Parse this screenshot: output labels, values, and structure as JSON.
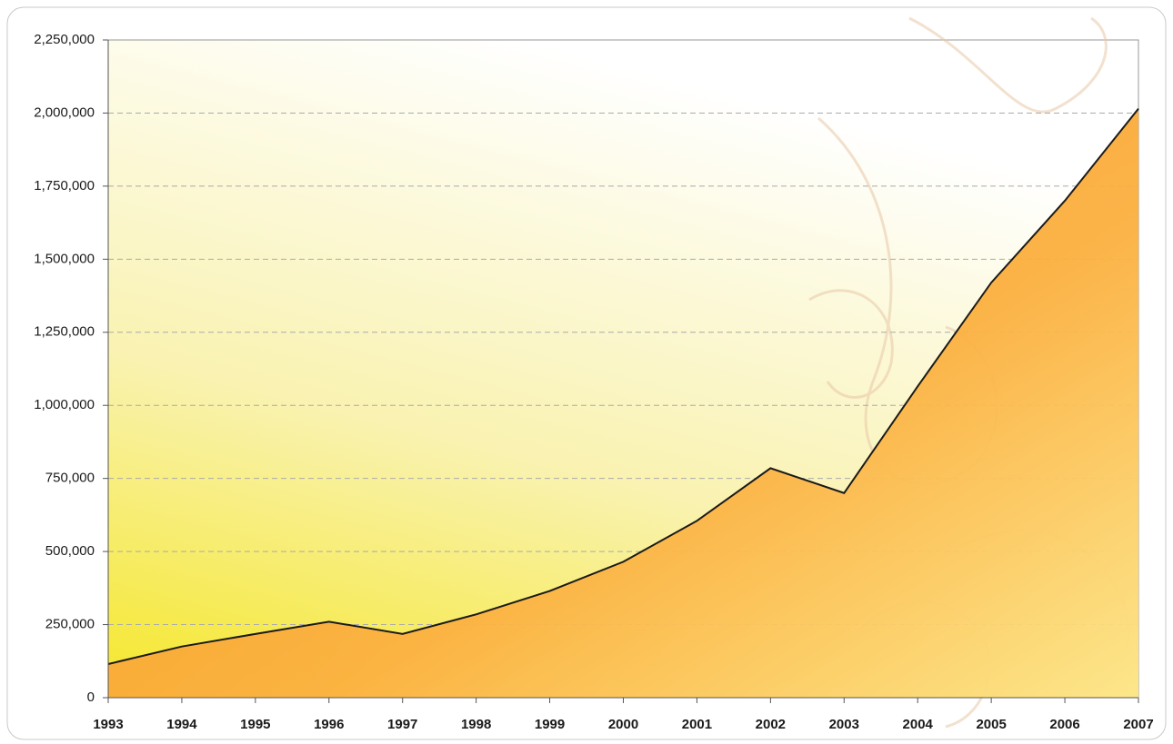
{
  "chart_data": {
    "type": "area",
    "categories": [
      "1993",
      "1994",
      "1995",
      "1996",
      "1997",
      "1998",
      "1999",
      "2000",
      "2001",
      "2002",
      "2003",
      "2004",
      "2005",
      "2006",
      "2007"
    ],
    "series": [
      {
        "color": "#f7941d",
        "values": [
          115000,
          175000,
          218000,
          260000,
          218000,
          285000,
          365000,
          465000,
          605000,
          785000,
          700000,
          1065000,
          1420000,
          1700000,
          2015000
        ]
      }
    ],
    "ylim": [
      0,
      2250000
    ],
    "yticks": [
      0,
      {
        "value": 250000,
        "label": "250,000"
      },
      {
        "value": 500000,
        "label": "500,000"
      },
      {
        "value": 750000,
        "label": "750,000"
      },
      {
        "value": 1000000,
        "label": "1,000,000"
      },
      {
        "value": 1250000,
        "label": "1,250,000"
      },
      {
        "value": 1500000,
        "label": "1,500,000"
      },
      {
        "value": 1750000,
        "label": "1,750,000"
      },
      {
        "value": 2000000,
        "label": "2,000,000"
      },
      {
        "value": 2250000,
        "label": "2,250,000"
      }
    ],
    "grid": true
  }
}
